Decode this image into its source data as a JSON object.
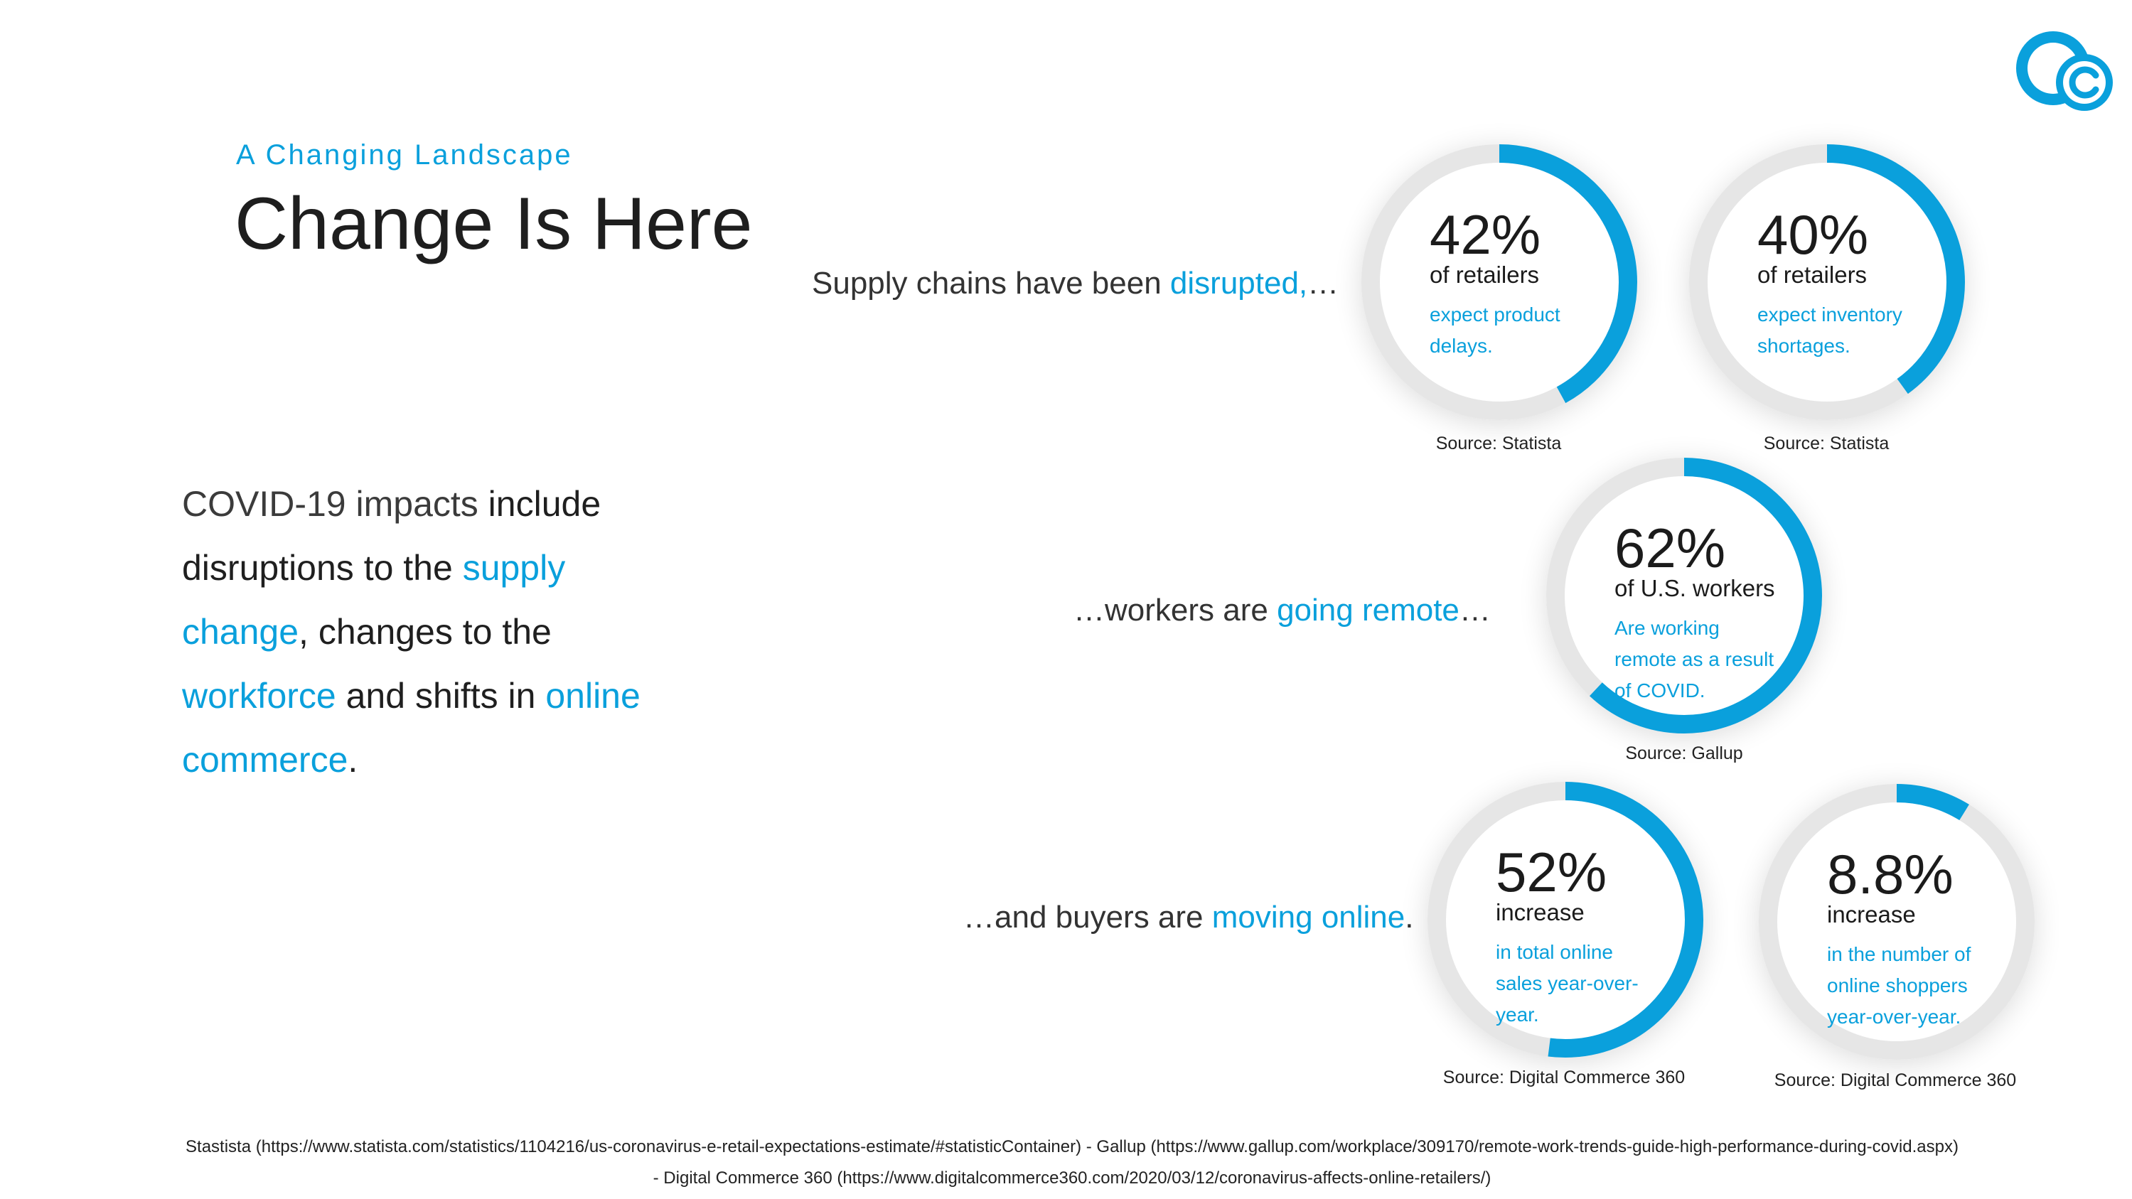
{
  "header": {
    "subtitle": "A Changing Landscape",
    "title": "Change Is Here"
  },
  "intro": {
    "p1": "COVID-19 impacts",
    "p2": " include disruptions to the ",
    "p3": "supply change",
    "p4": ", changes to the ",
    "p5": "workforce",
    "p6": " and shifts in ",
    "p7": "online commerce",
    "p8": "."
  },
  "taglines": {
    "supply": {
      "before": "Supply chains have been ",
      "highlight": "disrupted,",
      "after": "…"
    },
    "workers": {
      "before": "…workers are ",
      "highlight": "going remote",
      "after": "…"
    },
    "buyers": {
      "before": "…and buyers are ",
      "highlight": "moving online",
      "after": "."
    }
  },
  "stats": [
    {
      "value": "42%",
      "label": "of retailers",
      "desc_lines": [
        "expect product",
        "delays."
      ],
      "source": "Source: Statista",
      "fill_percent": 42
    },
    {
      "value": "40%",
      "label": "of retailers",
      "desc_lines": [
        "expect inventory",
        "shortages."
      ],
      "source": "Source: Statista",
      "fill_percent": 40
    },
    {
      "value": "62%",
      "label": "of U.S. workers",
      "desc_lines": [
        "Are working",
        "remote as a result",
        "of COVID."
      ],
      "source": "Source: Gallup",
      "fill_percent": 62
    },
    {
      "value": "52%",
      "label": "increase",
      "desc_lines": [
        "in total online",
        "sales year-over-",
        "year."
      ],
      "source": "Source: Digital Commerce 360",
      "fill_percent": 52
    },
    {
      "value": "8.8%",
      "label": "increase",
      "desc_lines": [
        "in the number of",
        "online shoppers",
        "year-over-year."
      ],
      "source": "Source: Digital Commerce 360",
      "fill_percent": 8.8
    }
  ],
  "footer": {
    "line1": "Stastista (https://www.statista.com/statistics/1104216/us-coronavirus-e-retail-expectations-estimate/#statisticContainer)   -   Gallup (https://www.gallup.com/workplace/309170/remote-work-trends-guide-high-performance-during-covid.aspx)",
    "line2": "-   Digital Commerce 360 (https://www.digitalcommerce360.com/2020/03/12/coronavirus-affects-online-retailers/)"
  },
  "colors": {
    "accent": "#0aa0dc",
    "track": "#e6e6e6",
    "text": "#212121"
  },
  "icons": {
    "logo": "cc-logo-icon"
  }
}
